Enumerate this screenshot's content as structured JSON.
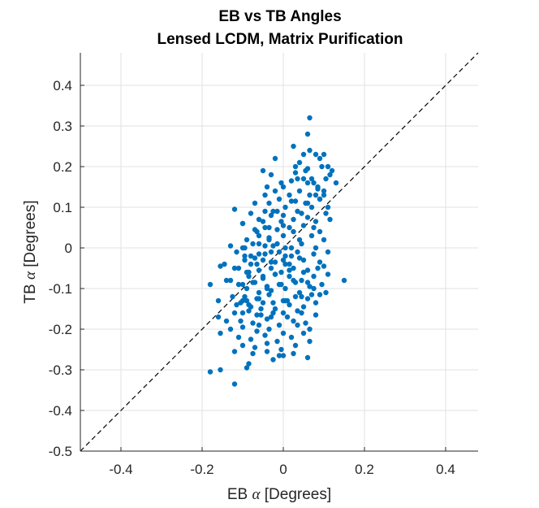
{
  "chart_data": {
    "type": "scatter",
    "title": [
      "EB vs TB Angles",
      "Lensed LCDM, Matrix Purification"
    ],
    "xlabel_parts": [
      "EB ",
      "α",
      " [Degrees]"
    ],
    "ylabel_parts": [
      "TB ",
      "α",
      " [Degrees]"
    ],
    "xlim": [
      -0.5,
      0.48
    ],
    "ylim": [
      -0.5,
      0.48
    ],
    "xticks": [
      -0.4,
      -0.2,
      0,
      0.2,
      0.4
    ],
    "xtick_labels": [
      "-0.4",
      "-0.2",
      "0",
      "0.2",
      "0.4"
    ],
    "yticks": [
      -0.5,
      -0.4,
      -0.3,
      -0.2,
      -0.1,
      0,
      0.1,
      0.2,
      0.3,
      0.4
    ],
    "ytick_labels": [
      "-0.5",
      "-0.4",
      "-0.3",
      "-0.2",
      "-0.1",
      "0",
      "0.1",
      "0.2",
      "0.3",
      "0.4"
    ],
    "grid": true,
    "reference_line": {
      "style": "dashed",
      "color": "#000000",
      "from": [
        -0.5,
        -0.5
      ],
      "to": [
        0.48,
        0.48
      ]
    },
    "marker_color": "#0072BD",
    "series": [
      {
        "x": [
          0.065,
          0.06,
          0.08,
          -0.02,
          0.05,
          0.065,
          0.1,
          0.09,
          0.11,
          0.12,
          0.03,
          0.06,
          0.095,
          0.115,
          0.035,
          -0.005,
          0.0,
          -0.04,
          0.02,
          0.05,
          0.075,
          0.105,
          0.13,
          -0.045,
          -0.02,
          0.015,
          0.04,
          0.065,
          0.085,
          0.1,
          -0.035,
          -0.01,
          0.02,
          0.055,
          0.09,
          0.11,
          -0.025,
          0.005,
          0.035,
          0.07,
          0.105,
          -0.1,
          -0.06,
          -0.03,
          -0.005,
          0.025,
          0.06,
          0.08,
          0.115,
          -0.065,
          -0.045,
          -0.015,
          0.015,
          0.05,
          0.09,
          -0.09,
          -0.06,
          -0.035,
          0.0,
          0.04,
          0.07,
          0.1,
          -0.1,
          -0.075,
          -0.045,
          -0.015,
          0.02,
          0.045,
          0.08,
          -0.095,
          -0.06,
          -0.03,
          0.005,
          0.035,
          0.075,
          0.11,
          -0.08,
          -0.05,
          -0.02,
          0.015,
          0.05,
          0.09,
          -0.11,
          -0.09,
          -0.06,
          -0.03,
          -0.005,
          0.025,
          0.06,
          0.1,
          -0.085,
          -0.05,
          -0.02,
          0.015,
          0.045,
          0.075,
          0.11,
          -0.145,
          -0.1,
          -0.07,
          -0.04,
          -0.005,
          0.03,
          0.065,
          0.095,
          -0.13,
          -0.09,
          -0.06,
          -0.03,
          0.005,
          0.04,
          0.075,
          0.105,
          -0.095,
          -0.065,
          -0.035,
          0.0,
          0.03,
          0.06,
          0.09,
          -0.115,
          -0.08,
          -0.05,
          -0.02,
          0.015,
          0.05,
          0.08,
          -0.16,
          -0.12,
          -0.085,
          -0.055,
          -0.025,
          0.01,
          0.045,
          0.08,
          -0.105,
          -0.075,
          -0.04,
          -0.01,
          0.025,
          0.055,
          -0.18,
          -0.13,
          -0.1,
          -0.065,
          -0.035,
          0.0,
          0.035,
          0.065,
          -0.11,
          -0.08,
          -0.045,
          -0.015,
          0.02,
          0.05,
          -0.14,
          -0.1,
          -0.07,
          -0.04,
          -0.005,
          0.03,
          0.065,
          -0.105,
          -0.075,
          -0.04,
          -0.01,
          0.025,
          0.06,
          -0.155,
          -0.12,
          -0.085,
          -0.05,
          -0.02,
          0.015,
          0.05,
          0.085,
          -0.095,
          -0.065,
          -0.03,
          0.0,
          0.04,
          -0.14,
          -0.11,
          -0.075,
          -0.04,
          -0.01,
          0.025,
          0.06,
          -0.125,
          -0.09,
          -0.06,
          -0.025,
          0.01,
          0.045,
          0.07,
          -0.16,
          -0.1,
          -0.065,
          -0.03,
          0.0,
          0.035,
          -0.115,
          -0.08,
          -0.045,
          -0.01,
          0.02,
          -0.13,
          -0.095,
          -0.06,
          -0.025,
          0.005,
          -0.1,
          -0.07,
          -0.035,
          0.0,
          -0.12,
          -0.08,
          -0.045,
          0.0,
          0.15,
          -0.18,
          -0.155,
          -0.12,
          -0.09,
          -0.085,
          -0.025,
          0.0,
          -0.155,
          -0.12,
          0.025,
          0.04,
          0.055,
          0.07,
          0.085,
          0.1,
          0.03,
          0.06,
          0.09,
          -0.05,
          -0.03,
          0.03,
          0.06,
          0.08,
          -0.015,
          0.045,
          0.075,
          -0.07,
          -0.035,
          0.005,
          -0.07,
          -0.05,
          0.025,
          -0.04,
          0.005,
          -0.085,
          -0.055,
          -0.1,
          -0.06
        ],
        "y": [
          0.32,
          0.28,
          0.23,
          0.22,
          0.23,
          0.24,
          0.23,
          0.22,
          0.2,
          0.19,
          0.2,
          0.195,
          0.2,
          0.18,
          0.17,
          0.16,
          0.15,
          0.15,
          0.165,
          0.17,
          0.16,
          0.17,
          0.16,
          0.13,
          0.14,
          0.13,
          0.14,
          0.13,
          0.145,
          0.14,
          0.11,
          0.12,
          0.115,
          0.11,
          0.12,
          0.1,
          0.09,
          0.1,
          0.09,
          0.1,
          0.085,
          0.06,
          0.07,
          0.08,
          0.065,
          0.07,
          0.075,
          0.065,
          0.07,
          0.04,
          0.05,
          0.045,
          0.05,
          0.055,
          0.04,
          0.02,
          0.03,
          0.025,
          0.03,
          0.02,
          0.03,
          0.02,
          0.0,
          0.01,
          0.005,
          0.01,
          0.0,
          0.01,
          0.0,
          -0.02,
          -0.015,
          -0.01,
          -0.02,
          -0.01,
          -0.015,
          -0.01,
          -0.04,
          -0.03,
          -0.035,
          -0.04,
          -0.03,
          -0.035,
          -0.05,
          -0.06,
          -0.055,
          -0.05,
          -0.06,
          -0.05,
          -0.055,
          -0.045,
          -0.07,
          -0.075,
          -0.065,
          -0.07,
          -0.08,
          -0.07,
          -0.065,
          -0.04,
          -0.09,
          -0.085,
          -0.095,
          -0.09,
          -0.085,
          -0.095,
          -0.09,
          -0.08,
          -0.1,
          -0.11,
          -0.105,
          -0.1,
          -0.11,
          -0.1,
          -0.11,
          -0.12,
          -0.125,
          -0.115,
          -0.13,
          -0.12,
          -0.125,
          -0.115,
          -0.14,
          -0.145,
          -0.135,
          -0.15,
          -0.14,
          -0.145,
          -0.135,
          -0.13,
          -0.16,
          -0.155,
          -0.165,
          -0.16,
          -0.17,
          -0.16,
          -0.165,
          -0.18,
          -0.185,
          -0.175,
          -0.19,
          -0.18,
          -0.185,
          -0.09,
          -0.2,
          -0.195,
          -0.205,
          -0.2,
          -0.21,
          -0.19,
          -0.2,
          -0.22,
          -0.225,
          -0.215,
          -0.23,
          -0.22,
          -0.21,
          -0.18,
          -0.24,
          -0.245,
          -0.235,
          -0.25,
          -0.24,
          -0.23,
          -0.135,
          -0.26,
          -0.255,
          -0.265,
          -0.26,
          -0.27,
          -0.045,
          -0.05,
          -0.06,
          -0.07,
          -0.065,
          -0.055,
          -0.06,
          -0.05,
          -0.03,
          -0.04,
          -0.035,
          -0.03,
          -0.025,
          -0.08,
          -0.09,
          -0.085,
          -0.095,
          -0.09,
          -0.08,
          -0.085,
          -0.12,
          -0.13,
          -0.125,
          -0.135,
          -0.13,
          -0.12,
          -0.115,
          -0.17,
          -0.16,
          -0.165,
          -0.17,
          -0.16,
          -0.155,
          -0.01,
          -0.02,
          -0.015,
          -0.01,
          -0.02,
          0.005,
          0.0,
          0.01,
          0.005,
          0.0,
          0.06,
          0.045,
          0.05,
          0.055,
          0.095,
          0.085,
          0.09,
          0.08,
          -0.08,
          -0.305,
          -0.3,
          -0.335,
          -0.295,
          -0.285,
          -0.275,
          -0.265,
          -0.21,
          -0.255,
          0.25,
          0.21,
          0.19,
          0.17,
          0.15,
          0.13,
          0.185,
          0.16,
          0.12,
          0.19,
          0.18,
          0.115,
          0.11,
          0.13,
          0.09,
          0.085,
          0.05,
          0.11,
          0.02,
          -0.04,
          -0.025,
          0.065,
          0.04,
          -0.1,
          -0.13,
          -0.14,
          -0.15,
          -0.13,
          -0.19
        ]
      }
    ]
  }
}
